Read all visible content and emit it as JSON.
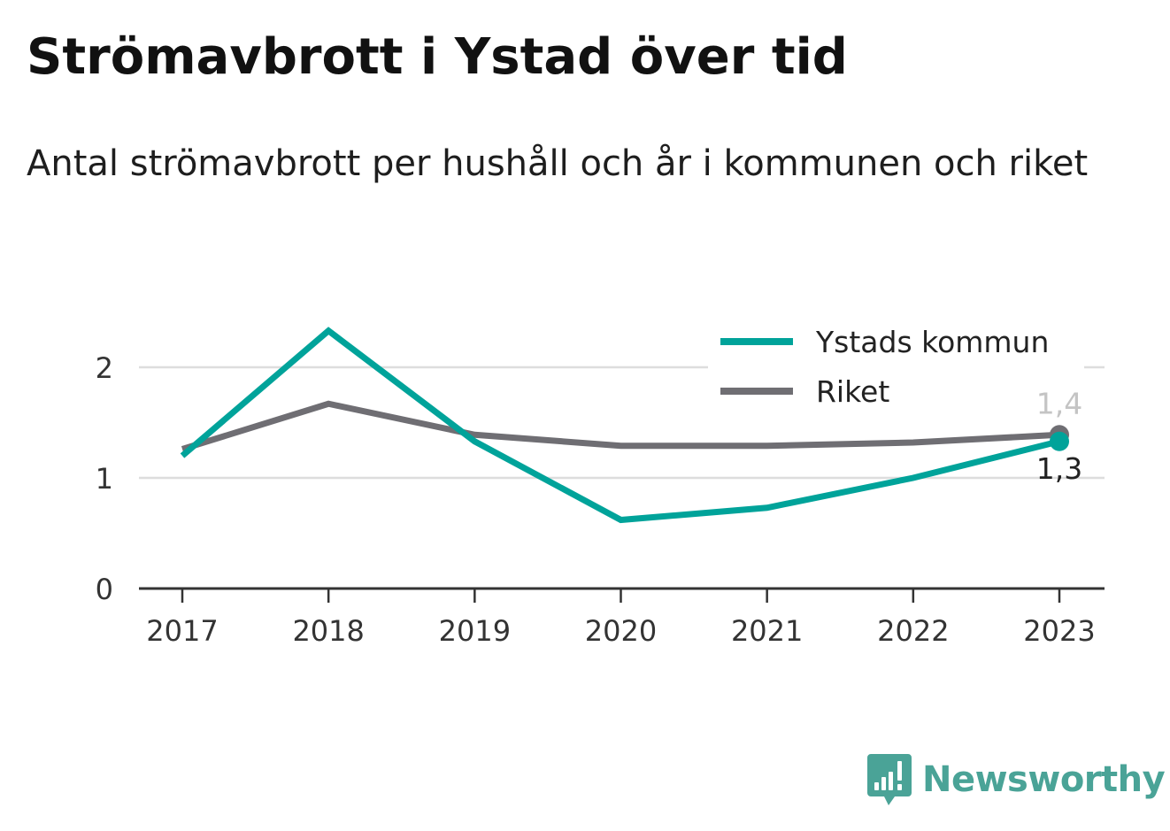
{
  "title": "Strömavbrott i Ystad över tid",
  "subtitle": "Antal strömavbrott per hushåll och år i kommunen och riket",
  "brand": {
    "name": "Newsworthy",
    "icon": "bar-chart-speech-bubble-icon",
    "color": "#4aa397"
  },
  "chart_data": {
    "type": "line",
    "x": [
      "2017",
      "2018",
      "2019",
      "2020",
      "2021",
      "2022",
      "2023"
    ],
    "ylim": [
      0,
      2.5
    ],
    "yticks": [
      "0",
      "1",
      "2"
    ],
    "grid": true,
    "legend_position": "top-right",
    "series": [
      {
        "name": "Ystads kommun",
        "color": "#00a39a",
        "values": [
          1.2,
          2.33,
          1.33,
          0.62,
          0.73,
          1.0,
          1.33
        ],
        "end_label": "1,3",
        "end_label_color": "#222222"
      },
      {
        "name": "Riket",
        "color": "#6f6e73",
        "values": [
          1.26,
          1.67,
          1.39,
          1.29,
          1.29,
          1.32,
          1.39
        ],
        "end_label": "1,4",
        "end_label_color": "#c4c4c4"
      }
    ]
  }
}
